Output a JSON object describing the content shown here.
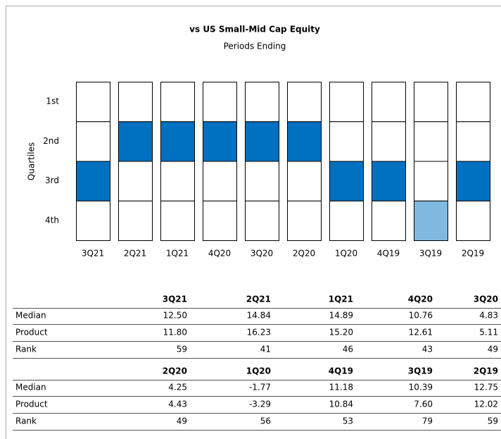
{
  "title": "vs US Small-Mid Cap Equity",
  "subtitle": "Periods Ending",
  "y_label": "Quartiles",
  "quartile_labels": [
    "1st",
    "2nd",
    "3rd",
    "4th"
  ],
  "periods": [
    "3Q21",
    "2Q21",
    "1Q21",
    "4Q20",
    "3Q20",
    "2Q20",
    "1Q20",
    "4Q19",
    "3Q19",
    "2Q19"
  ],
  "quartiles": [
    3,
    2,
    2,
    2,
    2,
    2,
    3,
    3,
    4,
    3
  ],
  "colors": [
    "#0070c0",
    "#0070c0",
    "#0070c0",
    "#0070c0",
    "#0070c0",
    "#0070c0",
    "#0070c0",
    "#0070c0",
    "#7fb9e0",
    "#0070c0"
  ],
  "table": {
    "blocks": [
      {
        "header": [
          "3Q21",
          "2Q21",
          "1Q21",
          "4Q20",
          "3Q20"
        ],
        "rows": [
          [
            "Median",
            "12.50",
            "14.84",
            "14.89",
            "10.76",
            "4.83"
          ],
          [
            "Product",
            "11.80",
            "16.23",
            "15.20",
            "12.61",
            "5.11"
          ],
          [
            "Rank",
            "59",
            "41",
            "46",
            "43",
            "49"
          ]
        ]
      },
      {
        "header": [
          "2Q20",
          "1Q20",
          "4Q19",
          "3Q19",
          "2Q19"
        ],
        "rows": [
          [
            "Median",
            "4.25",
            "-1.77",
            "11.18",
            "10.39",
            "12.75"
          ],
          [
            "Product",
            "4.43",
            "-3.29",
            "10.84",
            "7.60",
            "12.02"
          ],
          [
            "Rank",
            "49",
            "56",
            "53",
            "79",
            "59"
          ]
        ]
      }
    ]
  }
}
